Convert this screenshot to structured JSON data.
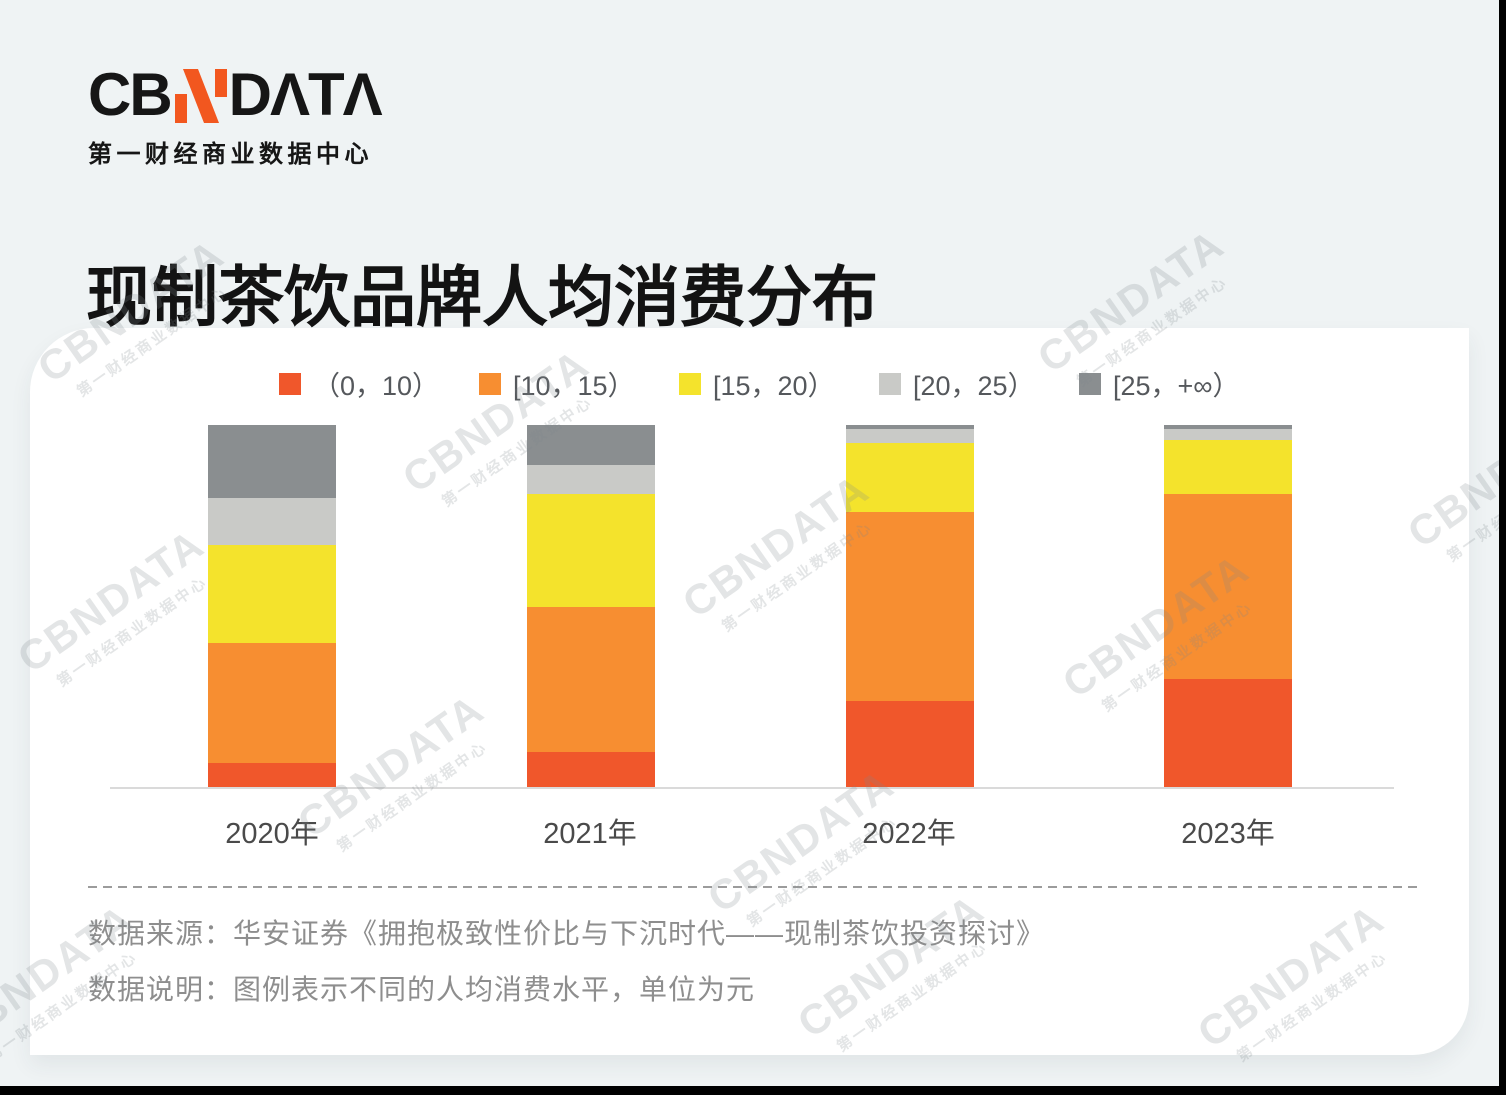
{
  "logo": {
    "text_left": "CB",
    "n_icon": "orange-slash-n",
    "text_right": "DΛTΛ",
    "subtitle": "第一财经商业数据中心"
  },
  "title": "现制茶饮品牌人均消费分布",
  "watermark": {
    "line1": "CBNDATA",
    "line2": "第一财经商业数据中心"
  },
  "footer": {
    "source": "数据来源：华安证券《拥抱极致性价比与下沉时代——现制茶饮投资探讨》",
    "note": "数据说明：图例表示不同的人均消费水平，单位为元"
  },
  "colors": {
    "background": "#EFF3F4",
    "card": "#FFFFFF",
    "logo_accent_orange": "#F2571F",
    "title_text": "#131313",
    "legend_text": "#55585C",
    "year_label_text": "#4A4A4A",
    "footer_text": "#8E8E8E",
    "axis_line": "#DADADA",
    "dashed_line": "#9C9C9C"
  },
  "chart_data": {
    "type": "bar",
    "stacked": true,
    "percent_of_total": true,
    "title": "现制茶饮品牌人均消费分布",
    "xlabel": "",
    "ylabel": "",
    "ylim": [
      0,
      100
    ],
    "grid": false,
    "legend_position": "top",
    "axis_style": "x-baseline-only, no y-axis, no value labels",
    "values_note": "segment shares estimated from pixel heights (100% stacked bars); legend bins are per-capita consumption in yuan",
    "categories": [
      "2020年",
      "2021年",
      "2022年",
      "2023年"
    ],
    "series": [
      {
        "name": "（0，10）",
        "color": "#F0572B",
        "values": [
          7,
          10,
          24,
          30
        ]
      },
      {
        "name": "[10，15）",
        "color": "#F78E31",
        "values": [
          33,
          40,
          52,
          51
        ]
      },
      {
        "name": "[15，20）",
        "color": "#F4E32C",
        "values": [
          27,
          31,
          19,
          15
        ]
      },
      {
        "name": "[20，25）",
        "color": "#C9CAC7",
        "values": [
          13,
          8,
          4,
          3
        ]
      },
      {
        "name": "[25，+∞）",
        "color": "#8A8E90",
        "values": [
          20,
          11,
          1,
          1
        ]
      }
    ]
  }
}
